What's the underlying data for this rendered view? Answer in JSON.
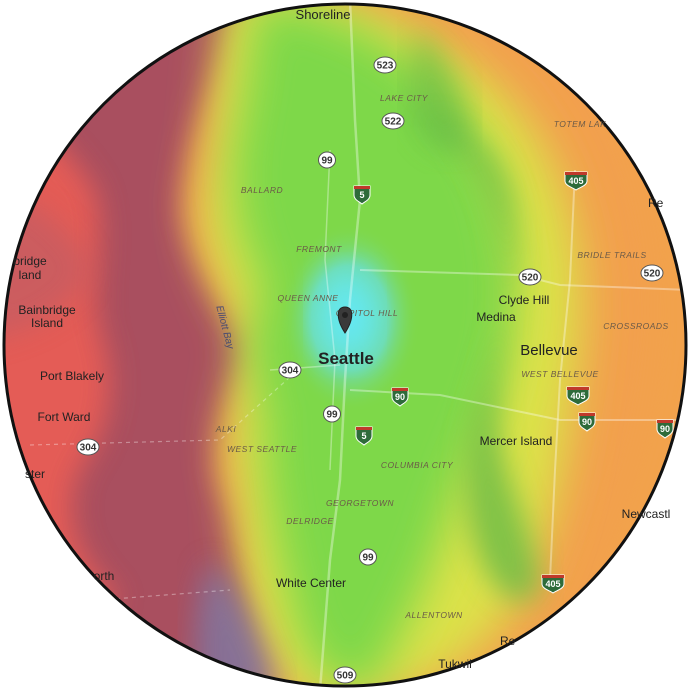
{
  "map": {
    "center_label": "Seattle",
    "marker": "map-pin-icon",
    "colors": {
      "water_deep": "#b35a68",
      "land_far": "#f2645a",
      "heat_center": "#5fe3e8",
      "heat_green": "#7fd94a",
      "heat_yellow": "#e6e54a",
      "heat_orange": "#f5a24a",
      "frame": "#111111"
    },
    "places": [
      {
        "id": "shoreline",
        "text": "Shoreline"
      },
      {
        "id": "bainbridge-island",
        "text": "Bainbridge Island"
      },
      {
        "id": "bainbridge-partial",
        "text": "bridge"
      },
      {
        "id": "bainbridge-partial-2",
        "text": "land"
      },
      {
        "id": "port-blakely",
        "text": "Port Blakely"
      },
      {
        "id": "fort-ward",
        "text": "Fort Ward"
      },
      {
        "id": "ster",
        "text": "ster"
      },
      {
        "id": "orth",
        "text": "orth"
      },
      {
        "id": "clyde-hill",
        "text": "Clyde Hill"
      },
      {
        "id": "medina",
        "text": "Medina"
      },
      {
        "id": "bellevue",
        "text": "Bellevue"
      },
      {
        "id": "mercer-island",
        "text": "Mercer Island"
      },
      {
        "id": "newcastle",
        "text": "Newcastl"
      },
      {
        "id": "white-center",
        "text": "White Center"
      },
      {
        "id": "tukwila",
        "text": "Tukwil"
      },
      {
        "id": "re-top",
        "text": "Re"
      },
      {
        "id": "re-bottom",
        "text": "Re"
      }
    ],
    "neighborhoods": [
      {
        "id": "lake-city",
        "text": "LAKE CITY"
      },
      {
        "id": "totem-lake",
        "text": "TOTEM LAK"
      },
      {
        "id": "ballard",
        "text": "BALLARD"
      },
      {
        "id": "fremont",
        "text": "FREMONT"
      },
      {
        "id": "queen-anne",
        "text": "QUEEN ANNE"
      },
      {
        "id": "capitol-hill",
        "text": "CAPITOL HILL"
      },
      {
        "id": "bridle-trails",
        "text": "BRIDLE TRAILS"
      },
      {
        "id": "crossroads",
        "text": "CROSSROADS"
      },
      {
        "id": "west-bellevue",
        "text": "WEST BELLEVUE"
      },
      {
        "id": "alki",
        "text": "ALKI"
      },
      {
        "id": "west-seattle",
        "text": "WEST SEATTLE"
      },
      {
        "id": "columbia-city",
        "text": "COLUMBIA CITY"
      },
      {
        "id": "georgetown",
        "text": "GEORGETOWN"
      },
      {
        "id": "delridge",
        "text": "DELRIDGE"
      },
      {
        "id": "allentown",
        "text": "ALLENTOWN"
      }
    ],
    "water": [
      {
        "id": "elliott-bay",
        "text": "Elliott Bay"
      }
    ],
    "route_shields": [
      {
        "id": "r523",
        "text": "523"
      },
      {
        "id": "r522",
        "text": "522"
      },
      {
        "id": "r99-north",
        "text": "99"
      },
      {
        "id": "r520-east",
        "text": "520"
      },
      {
        "id": "r520-right",
        "text": "520"
      },
      {
        "id": "r304-seattle",
        "text": "304"
      },
      {
        "id": "r304-west",
        "text": "304"
      },
      {
        "id": "r99-south",
        "text": "99"
      },
      {
        "id": "r99-lower",
        "text": "99"
      },
      {
        "id": "r509",
        "text": "509"
      }
    ],
    "interstate_shields": [
      {
        "id": "i5-north",
        "text": "5"
      },
      {
        "id": "i405-north",
        "text": "405"
      },
      {
        "id": "i90-center",
        "text": "90"
      },
      {
        "id": "i405-bellevue",
        "text": "405"
      },
      {
        "id": "i90-east",
        "text": "90"
      },
      {
        "id": "i90-edge",
        "text": "90"
      },
      {
        "id": "i5-south",
        "text": "5"
      },
      {
        "id": "i405-south",
        "text": "405"
      }
    ]
  }
}
